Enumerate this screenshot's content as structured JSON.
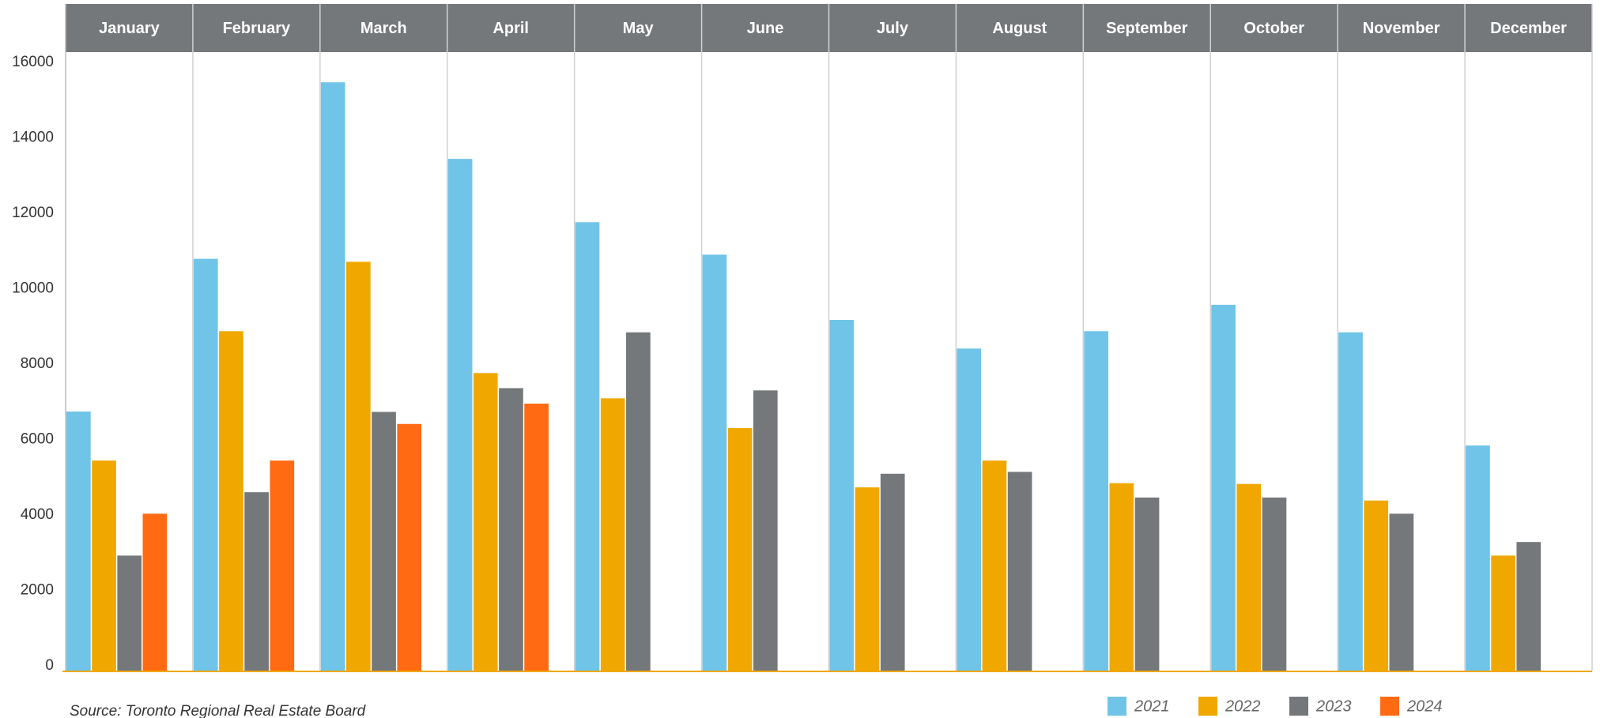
{
  "chart_data": {
    "type": "bar",
    "categories": [
      "January",
      "February",
      "March",
      "April",
      "May",
      "June",
      "July",
      "August",
      "September",
      "October",
      "November",
      "December"
    ],
    "series": [
      {
        "name": "2021",
        "color": "#6fc4e8",
        "values": [
          6870,
          10920,
          15600,
          13570,
          11890,
          11030,
          9300,
          8540,
          9000,
          9700,
          8970,
          5970
        ]
      },
      {
        "name": "2022",
        "color": "#f0a800",
        "values": [
          5570,
          9000,
          10840,
          7890,
          7220,
          6430,
          4860,
          5570,
          4970,
          4950,
          4510,
          3050
        ]
      },
      {
        "name": "2023",
        "color": "#75787b",
        "values": [
          3050,
          4730,
          6860,
          7490,
          8970,
          7430,
          5220,
          5270,
          4590,
          4590,
          4160,
          3410
        ]
      },
      {
        "name": "2024",
        "color": "#ff6a13",
        "values": [
          4160,
          5570,
          6540,
          7080,
          null,
          null,
          null,
          null,
          null,
          null,
          null,
          null
        ]
      }
    ],
    "ylim": [
      0,
      16400
    ],
    "yticks": [
      0,
      2000,
      4000,
      6000,
      8000,
      10000,
      12000,
      14000,
      16000
    ],
    "grid": false,
    "legend": "bottom-right",
    "source": "Source: Toronto Regional Real Estate Board"
  }
}
